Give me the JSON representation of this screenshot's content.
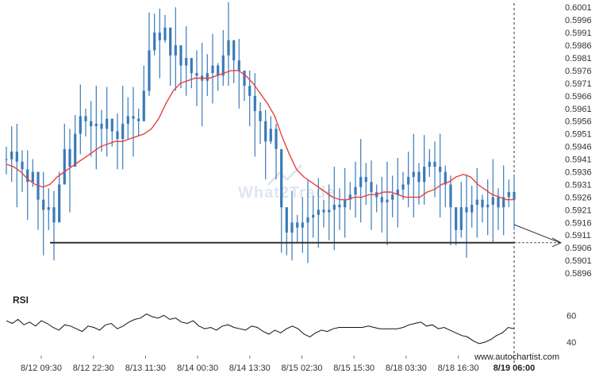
{
  "chart_data": {
    "type": "line",
    "instrument_chart": "candlestick",
    "y_ticks": [
      "0.6001",
      "0.5996",
      "0.5991",
      "0.5986",
      "0.5981",
      "0.5976",
      "0.5971",
      "0.5966",
      "0.5961",
      "0.5956",
      "0.5951",
      "0.5946",
      "0.5941",
      "0.5936",
      "0.5931",
      "0.5926",
      "0.5921",
      "0.5916",
      "0.5911",
      "0.5906",
      "0.5901",
      "0.5896"
    ],
    "ylim": [
      0.5891,
      0.6002
    ],
    "x_ticks": [
      "8/12 09:30",
      "8/12 22:30",
      "8/13 11:30",
      "8/14 00:30",
      "8/14 13:30",
      "8/15 02:30",
      "8/15 15:30",
      "8/18 03:30",
      "8/18 16:30",
      "8/19 06:00"
    ],
    "price_series": {
      "name": "",
      "values": [
        0.5941,
        0.5944,
        0.594,
        0.5937,
        0.5932,
        0.5936,
        0.5925,
        0.5921,
        0.5922,
        0.5916,
        0.5931,
        0.5945,
        0.5938,
        0.5951,
        0.5958,
        0.5956,
        0.5954,
        0.5955,
        0.5953,
        0.5957,
        0.5952,
        0.5949,
        0.5955,
        0.5958,
        0.5957,
        0.5956,
        0.5968,
        0.5984,
        0.5991,
        0.5988,
        0.5993,
        0.5982,
        0.5986,
        0.5978,
        0.5981,
        0.5975,
        0.5974,
        0.5972,
        0.5975,
        0.5978,
        0.5974,
        0.5982,
        0.5988,
        0.598,
        0.5976,
        0.597,
        0.5966,
        0.596,
        0.5956,
        0.5948,
        0.5953,
        0.5945,
        0.5922,
        0.5912,
        0.5916,
        0.5914,
        0.5916,
        0.5918,
        0.5919,
        0.5921,
        0.592,
        0.5921,
        0.5923,
        0.5922,
        0.5925,
        0.5927,
        0.593,
        0.5934,
        0.5932,
        0.5928,
        0.5926,
        0.5924,
        0.5925,
        0.5927,
        0.5929,
        0.5931,
        0.5934,
        0.5936,
        0.5932,
        0.5938,
        0.594,
        0.5938,
        0.5936,
        0.5931,
        0.5922,
        0.5913,
        0.5922,
        0.592,
        0.5923,
        0.5925,
        0.5922,
        0.5923,
        0.5926,
        0.5922,
        0.5926,
        0.5928,
        0.5925
      ]
    },
    "moving_average": {
      "name": "",
      "color": "#e8403c",
      "values": [
        0.5939,
        0.5938,
        0.5936,
        0.5933,
        0.5931,
        0.593,
        0.5931,
        0.5934,
        0.5936,
        0.5938,
        0.594,
        0.5942,
        0.5944,
        0.5946,
        0.5947,
        0.5948,
        0.5948,
        0.5949,
        0.595,
        0.5951,
        0.5953,
        0.5957,
        0.5963,
        0.5968,
        0.5971,
        0.5972,
        0.5973,
        0.5973,
        0.5973,
        0.5974,
        0.5975,
        0.5976,
        0.5976,
        0.5974,
        0.5971,
        0.5967,
        0.5963,
        0.5958,
        0.595,
        0.5943,
        0.5937,
        0.5934,
        0.5932,
        0.593,
        0.5928,
        0.5926,
        0.5925,
        0.5925,
        0.5926,
        0.5926,
        0.5927,
        0.5927,
        0.5928,
        0.5928,
        0.5927,
        0.5926,
        0.5926,
        0.5926,
        0.5928,
        0.5929,
        0.5931,
        0.5932,
        0.5934,
        0.5935,
        0.5934,
        0.5931,
        0.5929,
        0.5927,
        0.5926,
        0.5925,
        0.5925
      ]
    },
    "support_level": 0.5908,
    "projected_target": 0.5908,
    "rsi": {
      "label": "RSI",
      "ticks": [
        "60",
        "40"
      ],
      "ylim": [
        30,
        75
      ],
      "values": [
        56,
        54,
        57,
        53,
        55,
        52,
        56,
        54,
        51,
        49,
        53,
        52,
        50,
        48,
        52,
        51,
        49,
        53,
        54,
        50,
        52,
        55,
        57,
        58,
        61,
        59,
        58,
        60,
        57,
        58,
        55,
        54,
        56,
        52,
        50,
        51,
        49,
        52,
        53,
        51,
        50,
        49,
        52,
        51,
        48,
        46,
        49,
        47,
        50,
        52,
        50,
        46,
        44,
        47,
        49,
        48,
        50,
        51,
        51,
        51,
        51,
        51,
        52,
        51,
        50,
        50,
        50,
        50,
        51,
        53,
        54,
        55,
        52,
        53,
        50,
        51,
        49,
        47,
        45,
        44,
        41,
        39,
        40,
        42,
        45,
        47,
        51,
        50
      ]
    },
    "grid": false,
    "watermark": "What2Trade",
    "credit": "www.autochartist.com",
    "colors": {
      "candle": "#3a7ab8",
      "ma": "#e8403c",
      "support": "#333333",
      "rsi": "#111111",
      "watermark": "#dfe6ee"
    }
  }
}
